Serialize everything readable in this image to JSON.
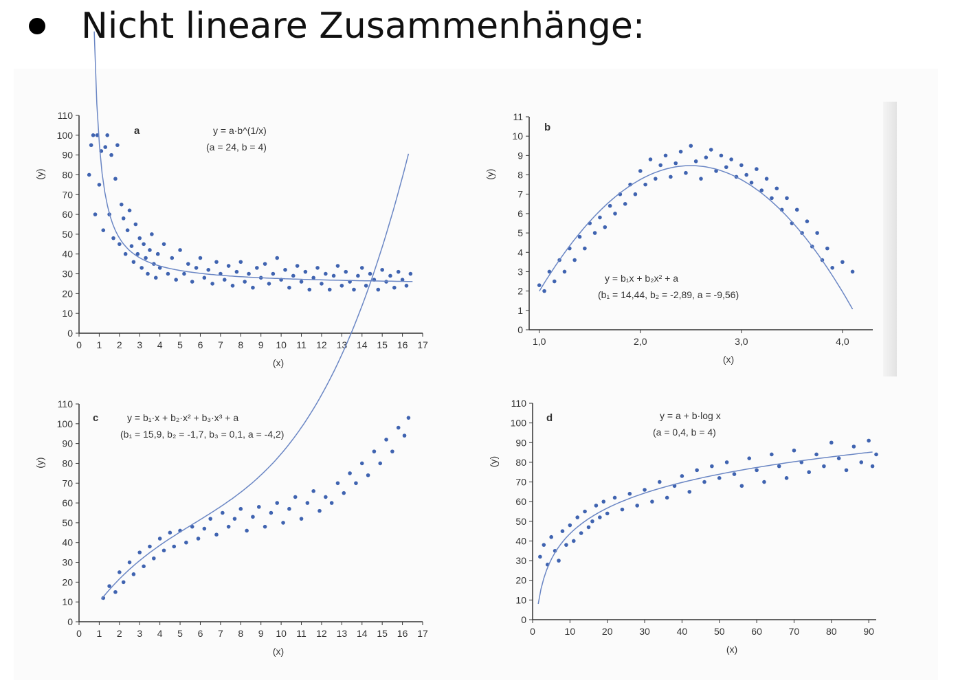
{
  "slide": {
    "title": "Nicht lineare Zusammenhänge:"
  },
  "chart_data": [
    {
      "id": "a",
      "type": "scatter",
      "panel_label": "a",
      "equation": "y = a·b^(1/x)",
      "params": "(a = 24, b = 4)",
      "fit": {
        "model": "a*b^(1/x)",
        "a": 24,
        "b": 4
      },
      "xlabel": "(x)",
      "ylabel": "(y)",
      "xlim": [
        0,
        17
      ],
      "ylim": [
        0,
        110
      ],
      "xticks": [
        0,
        1,
        2,
        3,
        4,
        5,
        6,
        7,
        8,
        9,
        10,
        11,
        12,
        13,
        14,
        15,
        16,
        17
      ],
      "xtick_labels": [
        "0",
        "1",
        "2",
        "3",
        "4",
        "5",
        "6",
        "7",
        "8",
        "9",
        "10",
        "11",
        "12",
        "13",
        "14",
        "15",
        "16",
        "17"
      ],
      "yticks": [
        0,
        10,
        20,
        30,
        40,
        50,
        60,
        70,
        80,
        90,
        100,
        110
      ],
      "ytick_labels": [
        "0",
        "10",
        "20",
        "30",
        "40",
        "50",
        "60",
        "70",
        "80",
        "90",
        "100",
        "110"
      ],
      "points": [
        [
          0.5,
          80
        ],
        [
          0.6,
          95
        ],
        [
          0.7,
          100
        ],
        [
          0.8,
          60
        ],
        [
          0.9,
          100
        ],
        [
          1.0,
          75
        ],
        [
          1.1,
          92
        ],
        [
          1.2,
          52
        ],
        [
          1.3,
          94
        ],
        [
          1.4,
          100
        ],
        [
          1.5,
          60
        ],
        [
          1.6,
          90
        ],
        [
          1.7,
          48
        ],
        [
          1.8,
          78
        ],
        [
          1.9,
          95
        ],
        [
          2.0,
          45
        ],
        [
          2.1,
          65
        ],
        [
          2.2,
          58
        ],
        [
          2.3,
          40
        ],
        [
          2.4,
          52
        ],
        [
          2.5,
          62
        ],
        [
          2.6,
          44
        ],
        [
          2.7,
          36
        ],
        [
          2.8,
          55
        ],
        [
          2.9,
          40
        ],
        [
          3.0,
          48
        ],
        [
          3.1,
          33
        ],
        [
          3.2,
          45
        ],
        [
          3.3,
          38
        ],
        [
          3.4,
          30
        ],
        [
          3.5,
          42
        ],
        [
          3.6,
          50
        ],
        [
          3.7,
          35
        ],
        [
          3.8,
          28
        ],
        [
          3.9,
          40
        ],
        [
          4.0,
          33
        ],
        [
          4.2,
          45
        ],
        [
          4.4,
          30
        ],
        [
          4.6,
          38
        ],
        [
          4.8,
          27
        ],
        [
          5.0,
          42
        ],
        [
          5.2,
          30
        ],
        [
          5.4,
          35
        ],
        [
          5.6,
          26
        ],
        [
          5.8,
          33
        ],
        [
          6.0,
          38
        ],
        [
          6.2,
          28
        ],
        [
          6.4,
          32
        ],
        [
          6.6,
          25
        ],
        [
          6.8,
          36
        ],
        [
          7.0,
          30
        ],
        [
          7.2,
          27
        ],
        [
          7.4,
          34
        ],
        [
          7.6,
          24
        ],
        [
          7.8,
          31
        ],
        [
          8.0,
          36
        ],
        [
          8.2,
          26
        ],
        [
          8.4,
          30
        ],
        [
          8.6,
          23
        ],
        [
          8.8,
          33
        ],
        [
          9.0,
          28
        ],
        [
          9.2,
          35
        ],
        [
          9.4,
          25
        ],
        [
          9.6,
          30
        ],
        [
          9.8,
          38
        ],
        [
          10.0,
          27
        ],
        [
          10.2,
          32
        ],
        [
          10.4,
          23
        ],
        [
          10.6,
          29
        ],
        [
          10.8,
          34
        ],
        [
          11.0,
          26
        ],
        [
          11.2,
          31
        ],
        [
          11.4,
          22
        ],
        [
          11.6,
          28
        ],
        [
          11.8,
          33
        ],
        [
          12.0,
          25
        ],
        [
          12.2,
          30
        ],
        [
          12.4,
          22
        ],
        [
          12.6,
          29
        ],
        [
          12.8,
          34
        ],
        [
          13.0,
          24
        ],
        [
          13.2,
          31
        ],
        [
          13.4,
          26
        ],
        [
          13.6,
          22
        ],
        [
          13.8,
          29
        ],
        [
          14.0,
          33
        ],
        [
          14.2,
          24
        ],
        [
          14.4,
          30
        ],
        [
          14.6,
          27
        ],
        [
          14.8,
          22
        ],
        [
          15.0,
          32
        ],
        [
          15.2,
          26
        ],
        [
          15.4,
          29
        ],
        [
          15.6,
          23
        ],
        [
          15.8,
          31
        ],
        [
          16.0,
          27
        ],
        [
          16.2,
          24
        ],
        [
          16.4,
          30
        ]
      ]
    },
    {
      "id": "b",
      "type": "scatter",
      "panel_label": "b",
      "equation": "y = b₁x + b₂x² + a",
      "params": "(b₁ = 14,44, b₂ = -2,89, a = -9,56)",
      "fit": {
        "model": "b1*x+b2*x^2+a",
        "b1": 14.44,
        "b2": -2.89,
        "a": -9.56
      },
      "xlabel": "(x)",
      "ylabel": "(y)",
      "xlim": [
        0.9,
        4.3
      ],
      "ylim": [
        0,
        11
      ],
      "xticks": [
        1.0,
        2.0,
        3.0,
        4.0
      ],
      "xtick_labels": [
        "1,0",
        "2,0",
        "3,0",
        "4,0"
      ],
      "yticks": [
        0,
        1,
        2,
        3,
        4,
        5,
        6,
        7,
        8,
        9,
        10,
        11
      ],
      "ytick_labels": [
        "0",
        "1",
        "2",
        "3",
        "4",
        "5",
        "6",
        "7",
        "8",
        "9",
        "10",
        "11"
      ],
      "points": [
        [
          1.0,
          2.3
        ],
        [
          1.05,
          2.0
        ],
        [
          1.1,
          3.0
        ],
        [
          1.15,
          2.5
        ],
        [
          1.2,
          3.6
        ],
        [
          1.25,
          3.0
        ],
        [
          1.3,
          4.2
        ],
        [
          1.35,
          3.6
        ],
        [
          1.4,
          4.8
        ],
        [
          1.45,
          4.2
        ],
        [
          1.5,
          5.5
        ],
        [
          1.55,
          5.0
        ],
        [
          1.6,
          5.8
        ],
        [
          1.65,
          5.3
        ],
        [
          1.7,
          6.4
        ],
        [
          1.75,
          6.0
        ],
        [
          1.8,
          7.0
        ],
        [
          1.85,
          6.5
        ],
        [
          1.9,
          7.5
        ],
        [
          1.95,
          7.0
        ],
        [
          2.0,
          8.2
        ],
        [
          2.05,
          7.5
        ],
        [
          2.1,
          8.8
        ],
        [
          2.15,
          7.8
        ],
        [
          2.2,
          8.5
        ],
        [
          2.25,
          9.0
        ],
        [
          2.3,
          7.9
        ],
        [
          2.35,
          8.6
        ],
        [
          2.4,
          9.2
        ],
        [
          2.45,
          8.1
        ],
        [
          2.5,
          9.5
        ],
        [
          2.55,
          8.7
        ],
        [
          2.6,
          7.8
        ],
        [
          2.65,
          8.9
        ],
        [
          2.7,
          9.3
        ],
        [
          2.75,
          8.2
        ],
        [
          2.8,
          9.0
        ],
        [
          2.85,
          8.4
        ],
        [
          2.9,
          8.8
        ],
        [
          2.95,
          7.9
        ],
        [
          3.0,
          8.5
        ],
        [
          3.05,
          8.0
        ],
        [
          3.1,
          7.6
        ],
        [
          3.15,
          8.3
        ],
        [
          3.2,
          7.2
        ],
        [
          3.25,
          7.8
        ],
        [
          3.3,
          6.8
        ],
        [
          3.35,
          7.3
        ],
        [
          3.4,
          6.2
        ],
        [
          3.45,
          6.8
        ],
        [
          3.5,
          5.5
        ],
        [
          3.55,
          6.2
        ],
        [
          3.6,
          5.0
        ],
        [
          3.65,
          5.6
        ],
        [
          3.7,
          4.3
        ],
        [
          3.75,
          5.0
        ],
        [
          3.8,
          3.6
        ],
        [
          3.85,
          4.2
        ],
        [
          3.9,
          3.2
        ],
        [
          4.0,
          3.5
        ],
        [
          4.1,
          3.0
        ]
      ]
    },
    {
      "id": "c",
      "type": "scatter",
      "panel_label": "c",
      "equation": "y = b₁·x + b₂·x² + b₃·x³ + a",
      "params": "(b₁ = 15,9, b₂ = -1,7, b₃ = 0,1, a = -4,2)",
      "fit": {
        "model": "b1*x+b2*x^2+b3*x^3+a",
        "b1": 15.9,
        "b2": -1.7,
        "b3": 0.1,
        "a": -4.2
      },
      "xlabel": "(x)",
      "ylabel": "(y)",
      "xlim": [
        0,
        17
      ],
      "ylim": [
        0,
        110
      ],
      "xticks": [
        0,
        1,
        2,
        3,
        4,
        5,
        6,
        7,
        8,
        9,
        10,
        11,
        12,
        13,
        14,
        15,
        16,
        17
      ],
      "xtick_labels": [
        "0",
        "1",
        "2",
        "3",
        "4",
        "5",
        "6",
        "7",
        "8",
        "9",
        "10",
        "11",
        "12",
        "13",
        "14",
        "15",
        "16",
        "17"
      ],
      "yticks": [
        0,
        10,
        20,
        30,
        40,
        50,
        60,
        70,
        80,
        90,
        100,
        110
      ],
      "ytick_labels": [
        "0",
        "10",
        "20",
        "30",
        "40",
        "50",
        "60",
        "70",
        "80",
        "90",
        "100",
        "110"
      ],
      "points": [
        [
          1.2,
          12
        ],
        [
          1.5,
          18
        ],
        [
          1.8,
          15
        ],
        [
          2.0,
          25
        ],
        [
          2.2,
          20
        ],
        [
          2.5,
          30
        ],
        [
          2.7,
          24
        ],
        [
          3.0,
          35
        ],
        [
          3.2,
          28
        ],
        [
          3.5,
          38
        ],
        [
          3.7,
          32
        ],
        [
          4.0,
          42
        ],
        [
          4.2,
          36
        ],
        [
          4.5,
          45
        ],
        [
          4.7,
          38
        ],
        [
          5.0,
          46
        ],
        [
          5.3,
          40
        ],
        [
          5.6,
          48
        ],
        [
          5.9,
          42
        ],
        [
          6.2,
          47
        ],
        [
          6.5,
          52
        ],
        [
          6.8,
          44
        ],
        [
          7.1,
          55
        ],
        [
          7.4,
          48
        ],
        [
          7.7,
          52
        ],
        [
          8.0,
          57
        ],
        [
          8.3,
          46
        ],
        [
          8.6,
          53
        ],
        [
          8.9,
          58
        ],
        [
          9.2,
          48
        ],
        [
          9.5,
          55
        ],
        [
          9.8,
          60
        ],
        [
          10.1,
          50
        ],
        [
          10.4,
          57
        ],
        [
          10.7,
          63
        ],
        [
          11.0,
          52
        ],
        [
          11.3,
          60
        ],
        [
          11.6,
          66
        ],
        [
          11.9,
          56
        ],
        [
          12.2,
          63
        ],
        [
          12.5,
          60
        ],
        [
          12.8,
          70
        ],
        [
          13.1,
          65
        ],
        [
          13.4,
          75
        ],
        [
          13.7,
          70
        ],
        [
          14.0,
          80
        ],
        [
          14.3,
          74
        ],
        [
          14.6,
          86
        ],
        [
          14.9,
          80
        ],
        [
          15.2,
          92
        ],
        [
          15.5,
          86
        ],
        [
          15.8,
          98
        ],
        [
          16.1,
          94
        ],
        [
          16.3,
          103
        ]
      ]
    },
    {
      "id": "d",
      "type": "scatter",
      "panel_label": "d",
      "equation": "y = a + b·log x",
      "params": "(a = 0,4, b = 4)",
      "fit": {
        "model": "a+b*log(x)",
        "a": 0.4,
        "b": 4
      },
      "xlabel": "(x)",
      "ylabel": "(y)",
      "xlim": [
        0,
        92
      ],
      "ylim": [
        0,
        110
      ],
      "xticks": [
        0,
        10,
        20,
        30,
        40,
        50,
        60,
        70,
        80,
        90
      ],
      "xtick_labels": [
        "0",
        "10",
        "20",
        "30",
        "40",
        "50",
        "60",
        "70",
        "80",
        "90"
      ],
      "yticks": [
        0,
        10,
        20,
        30,
        40,
        50,
        60,
        70,
        80,
        90,
        100,
        110
      ],
      "ytick_labels": [
        "0",
        "10",
        "20",
        "30",
        "40",
        "50",
        "60",
        "70",
        "80",
        "90",
        "100",
        "110"
      ],
      "points": [
        [
          2,
          32
        ],
        [
          3,
          38
        ],
        [
          4,
          28
        ],
        [
          5,
          42
        ],
        [
          6,
          35
        ],
        [
          7,
          30
        ],
        [
          8,
          45
        ],
        [
          9,
          38
        ],
        [
          10,
          48
        ],
        [
          11,
          40
        ],
        [
          12,
          52
        ],
        [
          13,
          44
        ],
        [
          14,
          55
        ],
        [
          15,
          47
        ],
        [
          16,
          50
        ],
        [
          17,
          58
        ],
        [
          18,
          52
        ],
        [
          19,
          60
        ],
        [
          20,
          54
        ],
        [
          22,
          62
        ],
        [
          24,
          56
        ],
        [
          26,
          64
        ],
        [
          28,
          58
        ],
        [
          30,
          66
        ],
        [
          32,
          60
        ],
        [
          34,
          70
        ],
        [
          36,
          62
        ],
        [
          38,
          68
        ],
        [
          40,
          73
        ],
        [
          42,
          65
        ],
        [
          44,
          76
        ],
        [
          46,
          70
        ],
        [
          48,
          78
        ],
        [
          50,
          72
        ],
        [
          52,
          80
        ],
        [
          54,
          74
        ],
        [
          56,
          68
        ],
        [
          58,
          82
        ],
        [
          60,
          76
        ],
        [
          62,
          70
        ],
        [
          64,
          84
        ],
        [
          66,
          78
        ],
        [
          68,
          72
        ],
        [
          70,
          86
        ],
        [
          72,
          80
        ],
        [
          74,
          75
        ],
        [
          76,
          84
        ],
        [
          78,
          78
        ],
        [
          80,
          90
        ],
        [
          82,
          82
        ],
        [
          84,
          76
        ],
        [
          86,
          88
        ],
        [
          88,
          80
        ],
        [
          90,
          91
        ],
        [
          91,
          78
        ],
        [
          92,
          84
        ]
      ]
    }
  ]
}
